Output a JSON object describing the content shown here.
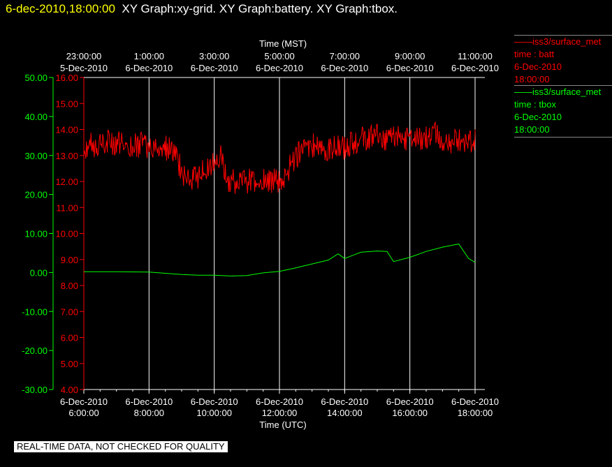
{
  "header": {
    "timestamp": "6-dec-2010,18:00:00",
    "graphs": "XY Graph:xy-grid.  XY Graph:battery.  XY Graph:tbox."
  },
  "legend": [
    {
      "lines": [
        "——iss3/surface_met",
        "time : batt",
        "6-Dec-2010",
        "18:00:00"
      ],
      "color": "#ff0000"
    },
    {
      "lines": [
        "——iss3/surface_met",
        "time : tbox",
        "6-Dec-2010",
        "18:00:00"
      ],
      "color": "#00ff00"
    }
  ],
  "footer": "REAL-TIME DATA, NOT CHECKED FOR QUALITY",
  "colors": {
    "batt": "#ff0000",
    "tbox": "#00ff00",
    "grid": "#ffffff",
    "text": "#ffffff",
    "highlight": "#ffff00"
  },
  "chart_data": {
    "type": "line",
    "x_top_label": "Time (MST)",
    "x_bottom_label": "Time (UTC)",
    "top_ticks": [
      {
        "date": "5-Dec-2010",
        "time": "23:00:00"
      },
      {
        "date": "6-Dec-2010",
        "time": "1:00:00"
      },
      {
        "date": "6-Dec-2010",
        "time": "3:00:00"
      },
      {
        "date": "6-Dec-2010",
        "time": "5:00:00"
      },
      {
        "date": "6-Dec-2010",
        "time": "7:00:00"
      },
      {
        "date": "6-Dec-2010",
        "time": "9:00:00"
      },
      {
        "date": "6-Dec-2010",
        "time": "11:00:00"
      }
    ],
    "bottom_ticks": [
      {
        "date": "6-Dec-2010",
        "time": "6:00:00"
      },
      {
        "date": "6-Dec-2010",
        "time": "8:00:00"
      },
      {
        "date": "6-Dec-2010",
        "time": "10:00:00"
      },
      {
        "date": "6-Dec-2010",
        "time": "12:00:00"
      },
      {
        "date": "6-Dec-2010",
        "time": "14:00:00"
      },
      {
        "date": "6-Dec-2010",
        "time": "16:00:00"
      },
      {
        "date": "6-Dec-2010",
        "time": "18:00:00"
      }
    ],
    "x_range_utc_hours": [
      6,
      18
    ],
    "tbox_axis": {
      "ticks": [
        "50.00",
        "40.00",
        "30.00",
        "20.00",
        "10.00",
        "0.00",
        "-10.00",
        "-20.00",
        "-30.00"
      ],
      "range": [
        -30,
        50
      ]
    },
    "batt_axis": {
      "ticks": [
        "16.00",
        "15.00",
        "14.00",
        "13.00",
        "12.00",
        "11.00",
        "10.00",
        "9.00",
        "8.00",
        "7.00",
        "6.00",
        "5.00",
        "4.00"
      ],
      "range": [
        4,
        16
      ]
    },
    "grid": true,
    "series": [
      {
        "key": "batt",
        "x": [
          6,
          6.5,
          7,
          7.5,
          8,
          8.5,
          8.8,
          9,
          9.3,
          9.6,
          10,
          10.2,
          10.4,
          10.7,
          11,
          11.3,
          11.6,
          12,
          12.2,
          12.4,
          12.7,
          13,
          13.3,
          13.6,
          14,
          14.4,
          14.8,
          15,
          15.3,
          15.6,
          16,
          16.4,
          16.8,
          17.2,
          17.6,
          18
        ],
        "y": [
          13.3,
          13.5,
          13.5,
          13.4,
          13.4,
          13.3,
          13.1,
          12.4,
          12.0,
          12.3,
          12.8,
          13.0,
          12.1,
          12.0,
          12.0,
          12.0,
          12.0,
          12.0,
          12.3,
          12.8,
          13.2,
          13.4,
          13.3,
          13.3,
          13.3,
          13.6,
          13.7,
          13.8,
          13.6,
          13.8,
          13.6,
          13.6,
          13.8,
          13.5,
          13.6,
          13.6
        ]
      },
      {
        "key": "tbox",
        "x": [
          6,
          7,
          8,
          9,
          9.5,
          10,
          10.5,
          11,
          11.5,
          12,
          12.5,
          13,
          13.5,
          13.8,
          14,
          14.5,
          15,
          15.3,
          15.5,
          16,
          16.5,
          17,
          17.3,
          17.5,
          17.8,
          18
        ],
        "y": [
          0.2,
          0.2,
          0.1,
          -0.5,
          -0.7,
          -0.7,
          -0.9,
          -0.8,
          -0.1,
          0.3,
          1.2,
          2.2,
          3.2,
          4.8,
          3.6,
          5.2,
          5.5,
          5.4,
          2.8,
          3.9,
          5.4,
          6.5,
          7.0,
          7.3,
          3.6,
          2.6
        ]
      }
    ]
  }
}
